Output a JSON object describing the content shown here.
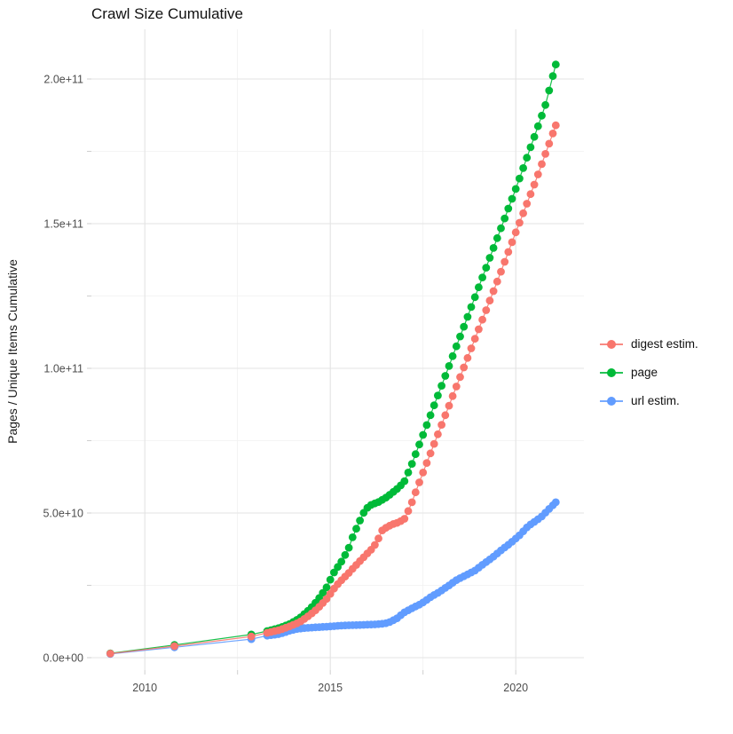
{
  "title": "Crawl Size Cumulative",
  "y_axis_title": "Pages / Unique Items Cumulative",
  "colors": {
    "digest": "#F8766D",
    "page": "#00BA38",
    "url": "#619CFF",
    "grid_major": "#E3E3E3",
    "grid_minor": "#F0F0F0",
    "tick": "#CFCFCF",
    "axis_text": "#4D4D4D",
    "background": "#FFFFFF"
  },
  "legend": {
    "items": [
      {
        "color_key": "digest",
        "label": "digest estim."
      },
      {
        "color_key": "page",
        "label": "page"
      },
      {
        "color_key": "url",
        "label": "url estim."
      }
    ]
  },
  "x_axis": {
    "major_ticks": [
      {
        "year": 2010,
        "label": "2010"
      },
      {
        "year": 2015,
        "label": "2015"
      },
      {
        "year": 2020,
        "label": "2020"
      }
    ],
    "minor_ticks": [
      2012.5,
      2017.5
    ],
    "range_years": [
      2008.56,
      2021.82
    ]
  },
  "y_axis": {
    "major_ticks": [
      {
        "value_e9": 0,
        "label": "0.0e+00"
      },
      {
        "value_e9": 50,
        "label": "5.0e+10"
      },
      {
        "value_e9": 100,
        "label": "1.0e+11"
      },
      {
        "value_e9": 150,
        "label": "1.5e+11"
      },
      {
        "value_e9": 200,
        "label": "2.0e+11"
      }
    ],
    "minor_ticks_e9": [
      25,
      75,
      125,
      175
    ],
    "range_e9": [
      -4.3,
      216.5
    ]
  },
  "chart_data": {
    "type": "scatter",
    "note": "values in billions (e9) of pages / unique items, x in decimal years",
    "sample_step_years": 0.1,
    "draw_order": [
      "page",
      "url",
      "digest"
    ],
    "series": [
      {
        "name": "digest estim.",
        "color_key": "digest",
        "sparse_points": [
          [
            2009.07,
            1.4
          ],
          [
            2010.8,
            4.0
          ],
          [
            2012.87,
            7.3
          ]
        ],
        "anchors": [
          [
            2013.3,
            8.6
          ],
          [
            2013.64,
            9.6
          ],
          [
            2013.9,
            10.8
          ],
          [
            2014.16,
            12.2
          ],
          [
            2014.35,
            13.8
          ],
          [
            2014.5,
            15.3
          ],
          [
            2014.64,
            16.8
          ],
          [
            2014.78,
            18.6
          ],
          [
            2014.9,
            20.3
          ],
          [
            2015.02,
            22.4
          ],
          [
            2015.14,
            24.6
          ],
          [
            2015.26,
            26.2
          ],
          [
            2015.38,
            27.8
          ],
          [
            2015.5,
            29.3
          ],
          [
            2015.62,
            31.0
          ],
          [
            2015.74,
            32.6
          ],
          [
            2015.85,
            34.0
          ],
          [
            2015.95,
            35.4
          ],
          [
            2016.1,
            37.3
          ],
          [
            2016.25,
            39.8
          ],
          [
            2016.4,
            44.0
          ],
          [
            2016.55,
            45.3
          ],
          [
            2016.7,
            46.2
          ],
          [
            2016.85,
            46.8
          ],
          [
            2017.0,
            48.0
          ],
          [
            2017.15,
            52.0
          ],
          [
            2017.5,
            64.0
          ],
          [
            2018.0,
            80.5
          ],
          [
            2018.5,
            97.0
          ],
          [
            2019.0,
            113.5
          ],
          [
            2019.5,
            130.0
          ],
          [
            2020.0,
            147.0
          ],
          [
            2020.5,
            163.5
          ],
          [
            2021.08,
            184.0
          ]
        ]
      },
      {
        "name": "page",
        "color_key": "page",
        "sparse_points": [
          [
            2009.07,
            1.5
          ],
          [
            2010.8,
            4.4
          ],
          [
            2012.87,
            8.0
          ]
        ],
        "anchors": [
          [
            2013.3,
            9.2
          ],
          [
            2013.64,
            10.3
          ],
          [
            2013.9,
            11.6
          ],
          [
            2014.16,
            13.5
          ],
          [
            2014.35,
            15.6
          ],
          [
            2014.5,
            17.5
          ],
          [
            2014.64,
            19.6
          ],
          [
            2014.78,
            22.0
          ],
          [
            2014.9,
            24.3
          ],
          [
            2015.02,
            27.5
          ],
          [
            2015.14,
            30.4
          ],
          [
            2015.26,
            32.3
          ],
          [
            2015.38,
            35.0
          ],
          [
            2015.5,
            38.0
          ],
          [
            2015.62,
            42.3
          ],
          [
            2015.74,
            45.7
          ],
          [
            2015.85,
            48.8
          ],
          [
            2015.95,
            51.3
          ],
          [
            2016.1,
            52.8
          ],
          [
            2016.3,
            53.8
          ],
          [
            2016.5,
            55.3
          ],
          [
            2016.7,
            57.3
          ],
          [
            2016.85,
            58.8
          ],
          [
            2017.0,
            61.0
          ],
          [
            2017.2,
            67.0
          ],
          [
            2017.5,
            77.0
          ],
          [
            2018.0,
            94.0
          ],
          [
            2018.5,
            111.0
          ],
          [
            2019.0,
            128.0
          ],
          [
            2019.5,
            145.0
          ],
          [
            2020.0,
            162.0
          ],
          [
            2020.5,
            180.0
          ],
          [
            2020.8,
            191.0
          ],
          [
            2021.08,
            205.0
          ]
        ]
      },
      {
        "name": "url estim.",
        "color_key": "url",
        "sparse_points": [
          [
            2009.07,
            1.3
          ],
          [
            2010.8,
            3.6
          ],
          [
            2012.87,
            6.4
          ]
        ],
        "anchors": [
          [
            2013.3,
            7.6
          ],
          [
            2013.64,
            8.2
          ],
          [
            2013.9,
            9.3
          ],
          [
            2014.1,
            9.9
          ],
          [
            2014.3,
            10.2
          ],
          [
            2014.6,
            10.5
          ],
          [
            2014.9,
            10.7
          ],
          [
            2015.2,
            11.0
          ],
          [
            2015.5,
            11.2
          ],
          [
            2015.8,
            11.3
          ],
          [
            2016.0,
            11.4
          ],
          [
            2016.2,
            11.5
          ],
          [
            2016.39,
            11.7
          ],
          [
            2016.55,
            12.0
          ],
          [
            2016.79,
            13.5
          ],
          [
            2016.99,
            15.6
          ],
          [
            2017.22,
            17.2
          ],
          [
            2017.46,
            18.7
          ],
          [
            2017.7,
            20.9
          ],
          [
            2017.94,
            22.7
          ],
          [
            2018.18,
            24.8
          ],
          [
            2018.42,
            27.0
          ],
          [
            2018.66,
            28.5
          ],
          [
            2018.9,
            30.1
          ],
          [
            2019.14,
            32.5
          ],
          [
            2019.38,
            34.7
          ],
          [
            2019.6,
            37.1
          ],
          [
            2019.86,
            39.6
          ],
          [
            2020.1,
            42.3
          ],
          [
            2020.33,
            45.4
          ],
          [
            2020.53,
            47.2
          ],
          [
            2020.7,
            48.8
          ],
          [
            2020.86,
            50.9
          ],
          [
            2021.08,
            53.7
          ]
        ]
      }
    ]
  }
}
